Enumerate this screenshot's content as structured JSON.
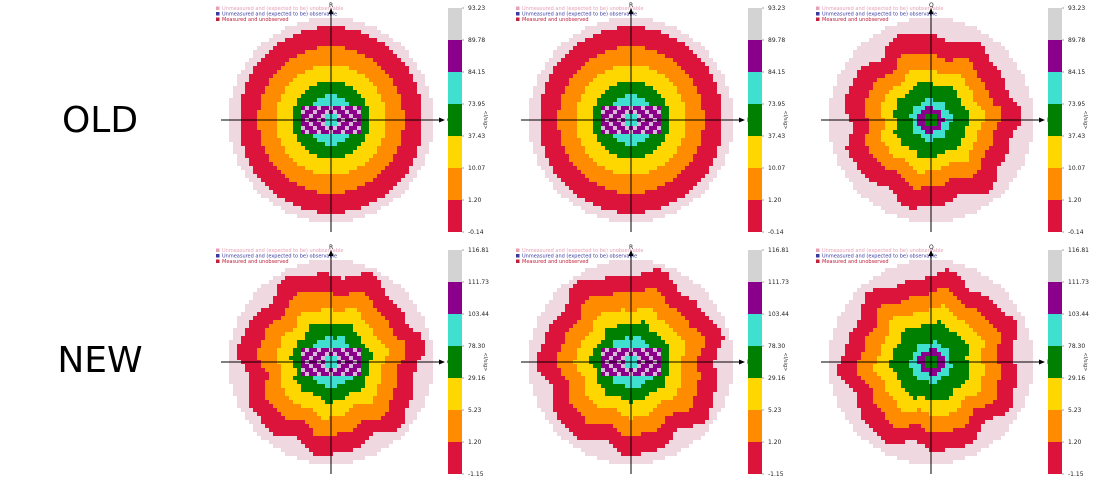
{
  "rows": [
    {
      "label": "OLD"
    },
    {
      "label": "NEW"
    }
  ],
  "legend_entries": [
    {
      "text": "Unmeasured and (expected to be) unobservable",
      "color": "#e8a0b4"
    },
    {
      "text": "Unmeasured and (expected to be) observable",
      "color": "#3a3aa0"
    },
    {
      "text": "Measured and unobserved",
      "color": "#c0203a"
    }
  ],
  "colorbar_title": "<I/sig>",
  "colors": {
    "bands": [
      "#dc143c",
      "#ff8c00",
      "#ffd700",
      "#008000",
      "#40e0d0",
      "#8b008b",
      "#d3d3d3"
    ],
    "unobservable": "#f0d8e0",
    "center": "#008000"
  },
  "chart_data": [
    {
      "type": "heatmap",
      "row": "OLD",
      "col": 0,
      "h_axis": "Q",
      "v_axis": "R",
      "ticks": [
        "93.23",
        "89.78",
        "84.15",
        "73.95",
        "37.43",
        "10.07",
        "1.20",
        "-0.14"
      ],
      "shape": {
        "rx": 0.9,
        "ry": 0.91,
        "bands": [
          1.0,
          0.79,
          0.6,
          0.42,
          0.27
        ],
        "center_ring": false,
        "wavy": false,
        "purple_patch": true
      }
    },
    {
      "type": "heatmap",
      "row": "OLD",
      "col": 1,
      "h_axis": "P",
      "v_axis": "R",
      "ticks": [
        "93.23",
        "89.78",
        "84.15",
        "73.95",
        "37.43",
        "10.07",
        "1.20",
        "-0.14"
      ],
      "shape": {
        "rx": 0.9,
        "ry": 0.91,
        "bands": [
          1.0,
          0.79,
          0.6,
          0.42,
          0.27
        ],
        "center_ring": false,
        "wavy": false,
        "purple_patch": true
      }
    },
    {
      "type": "heatmap",
      "row": "OLD",
      "col": 2,
      "h_axis": "P",
      "v_axis": "Q",
      "ticks": [
        "93.23",
        "89.78",
        "84.15",
        "73.95",
        "37.43",
        "10.07",
        "1.20",
        "-0.14"
      ],
      "shape": {
        "rx": 0.9,
        "ry": 0.9,
        "bands": [
          0.93,
          0.72,
          0.55,
          0.4,
          0.22
        ],
        "center_ring": true,
        "wavy": true,
        "purple_patch": false
      }
    },
    {
      "type": "heatmap",
      "row": "NEW",
      "col": 0,
      "h_axis": "Q",
      "v_axis": "R",
      "ticks": [
        "116.81",
        "111.73",
        "103.44",
        "78.30",
        "29.16",
        "5.23",
        "1.20",
        "-1.15"
      ],
      "shape": {
        "rx": 0.9,
        "ry": 0.91,
        "bands": [
          0.97,
          0.77,
          0.58,
          0.42,
          0.27
        ],
        "center_ring": false,
        "wavy": true,
        "purple_patch": true
      }
    },
    {
      "type": "heatmap",
      "row": "NEW",
      "col": 1,
      "h_axis": "P",
      "v_axis": "R",
      "ticks": [
        "116.81",
        "111.73",
        "103.44",
        "78.30",
        "29.16",
        "5.23",
        "1.20",
        "-1.15"
      ],
      "shape": {
        "rx": 0.9,
        "ry": 0.91,
        "bands": [
          0.97,
          0.77,
          0.58,
          0.42,
          0.27
        ],
        "center_ring": false,
        "wavy": true,
        "purple_patch": true
      }
    },
    {
      "type": "heatmap",
      "row": "NEW",
      "col": 2,
      "h_axis": "P",
      "v_axis": "Q",
      "ticks": [
        "116.81",
        "111.73",
        "103.44",
        "78.30",
        "29.16",
        "5.23",
        "1.20",
        "-1.15"
      ],
      "shape": {
        "rx": 0.9,
        "ry": 0.9,
        "bands": [
          0.95,
          0.76,
          0.58,
          0.42,
          0.22
        ],
        "center_ring": true,
        "wavy": true,
        "purple_patch": false
      }
    }
  ]
}
